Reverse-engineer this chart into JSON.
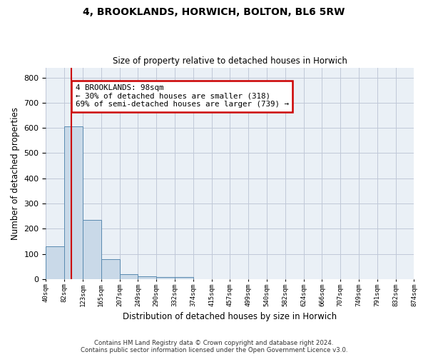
{
  "title": "4, BROOKLANDS, HORWICH, BOLTON, BL6 5RW",
  "subtitle": "Size of property relative to detached houses in Horwich",
  "xlabel": "Distribution of detached houses by size in Horwich",
  "ylabel": "Number of detached properties",
  "bin_labels": [
    "40sqm",
    "82sqm",
    "123sqm",
    "165sqm",
    "207sqm",
    "249sqm",
    "290sqm",
    "332sqm",
    "374sqm",
    "415sqm",
    "457sqm",
    "499sqm",
    "540sqm",
    "582sqm",
    "624sqm",
    "666sqm",
    "707sqm",
    "749sqm",
    "791sqm",
    "832sqm",
    "874sqm"
  ],
  "bar_heights": [
    130,
    605,
    235,
    80,
    20,
    12,
    8,
    8,
    0,
    0,
    0,
    0,
    0,
    0,
    0,
    0,
    0,
    0,
    0,
    0
  ],
  "bar_color": "#c9d9e8",
  "bar_edge_color": "#5a8ab0",
  "grid_color": "#c0c8d8",
  "background_color": "#eaf0f6",
  "red_line_x": 1.39,
  "annotation_text": "4 BROOKLANDS: 98sqm\n← 30% of detached houses are smaller (318)\n69% of semi-detached houses are larger (739) →",
  "annotation_box_color": "#ffffff",
  "annotation_border_color": "#cc0000",
  "footer_text": "Contains HM Land Registry data © Crown copyright and database right 2024.\nContains public sector information licensed under the Open Government Licence v3.0.",
  "ylim": [
    0,
    840
  ],
  "yticks": [
    0,
    100,
    200,
    300,
    400,
    500,
    600,
    700,
    800
  ]
}
